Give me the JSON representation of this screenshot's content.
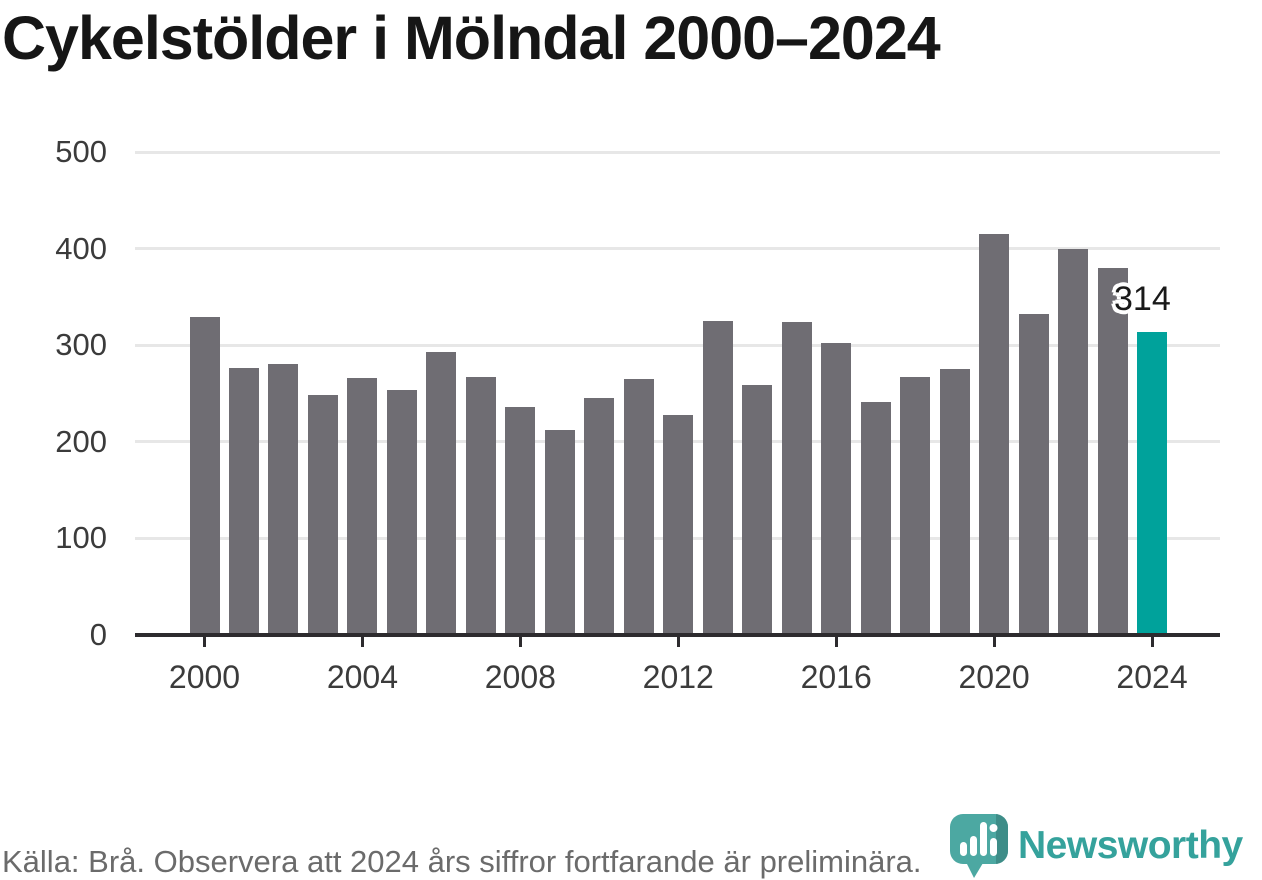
{
  "chart_data": {
    "type": "bar",
    "title": "Cykelstölder i Mölndal 2000–2024",
    "x": [
      2000,
      2001,
      2002,
      2003,
      2004,
      2005,
      2006,
      2007,
      2008,
      2009,
      2010,
      2011,
      2012,
      2013,
      2014,
      2015,
      2016,
      2017,
      2018,
      2019,
      2020,
      2021,
      2022,
      2023,
      2024
    ],
    "values": [
      329,
      276,
      281,
      248,
      266,
      254,
      293,
      267,
      236,
      212,
      245,
      265,
      228,
      325,
      259,
      324,
      302,
      241,
      267,
      275,
      415,
      332,
      400,
      380,
      314
    ],
    "x_tick_labels": [
      "2000",
      "2004",
      "2008",
      "2012",
      "2016",
      "2020",
      "2024"
    ],
    "y_ticks": [
      0,
      100,
      200,
      300,
      400,
      500
    ],
    "ylim": [
      0,
      500
    ],
    "grid": "horizontal-behind-bars",
    "legend": "none",
    "bar_color": "#6F6D73",
    "highlight_year": 2024,
    "highlight_color": "#00A29B",
    "annotation": {
      "year": 2024,
      "text": "314"
    }
  },
  "footer": {
    "source_note": "Källa: Brå. Observera att 2024 års siffror fortfarande är preliminära."
  },
  "logo": {
    "brand": "Newsworthy",
    "wordmark_color": "#35A29C",
    "pin_color": "#4CA8A2",
    "pin_shade_color": "#3E8D88"
  }
}
